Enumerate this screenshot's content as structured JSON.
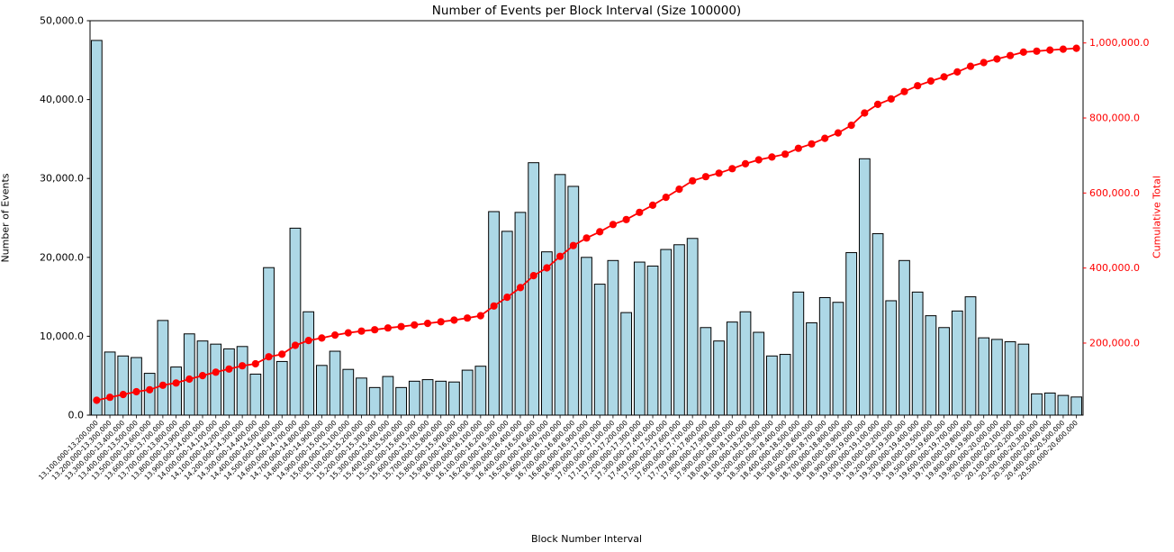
{
  "chart_data": {
    "type": "combo_bar_line_dual_axis",
    "title": "Number of Events per Block Interval (Size 100000)",
    "xlabel": "Block Number Interval",
    "ylabel_left": "Number of Events",
    "ylabel_right": "Cumulative Total",
    "grid": false,
    "legend": "none",
    "x_tick_rotation_deg": 45,
    "categories": [
      "13,100,000-13,200,000",
      "13,200,000-13,300,000",
      "13,300,000-13,400,000",
      "13,400,000-13,500,000",
      "13,500,000-13,600,000",
      "13,600,000-13,700,000",
      "13,700,000-13,800,000",
      "13,800,000-13,900,000",
      "13,900,000-14,000,000",
      "14,000,000-14,100,000",
      "14,100,000-14,200,000",
      "14,200,000-14,300,000",
      "14,300,000-14,400,000",
      "14,400,000-14,500,000",
      "14,500,000-14,600,000",
      "14,600,000-14,700,000",
      "14,700,000-14,800,000",
      "14,800,000-14,900,000",
      "14,900,000-15,000,000",
      "15,000,000-15,100,000",
      "15,100,000-15,200,000",
      "15,200,000-15,300,000",
      "15,300,000-15,400,000",
      "15,400,000-15,500,000",
      "15,500,000-15,600,000",
      "15,600,000-15,700,000",
      "15,700,000-15,800,000",
      "15,800,000-15,900,000",
      "15,900,000-16,000,000",
      "16,000,000-16,100,000",
      "16,100,000-16,200,000",
      "16,200,000-16,300,000",
      "16,300,000-16,400,000",
      "16,400,000-16,500,000",
      "16,500,000-16,600,000",
      "16,600,000-16,700,000",
      "16,700,000-16,800,000",
      "16,800,000-16,900,000",
      "16,900,000-17,000,000",
      "17,000,000-17,100,000",
      "17,100,000-17,200,000",
      "17,200,000-17,300,000",
      "17,300,000-17,400,000",
      "17,400,000-17,500,000",
      "17,500,000-17,600,000",
      "17,600,000-17,700,000",
      "17,700,000-17,800,000",
      "17,800,000-17,900,000",
      "17,900,000-18,000,000",
      "18,000,000-18,100,000",
      "18,100,000-18,200,000",
      "18,200,000-18,300,000",
      "18,300,000-18,400,000",
      "18,400,000-18,500,000",
      "18,500,000-18,600,000",
      "18,600,000-18,700,000",
      "18,700,000-18,800,000",
      "18,800,000-18,900,000",
      "18,900,000-19,000,000",
      "19,000,000-19,100,000",
      "19,100,000-19,200,000",
      "19,200,000-19,300,000",
      "19,300,000-19,400,000",
      "19,400,000-19,500,000",
      "19,500,000-19,600,000",
      "19,600,000-19,700,000",
      "19,700,000-19,800,000",
      "19,800,000-19,900,000",
      "19,900,000-20,000,000",
      "20,000,000-20,100,000",
      "20,100,000-20,200,000",
      "20,200,000-20,300,000",
      "20,300,000-20,400,000",
      "20,400,000-20,500,000",
      "20,500,000-20,600,000"
    ],
    "series": [
      {
        "name": "Number of Events",
        "type": "bar",
        "axis": "left",
        "fill": "#ADD8E6",
        "edge": "#000000",
        "values": [
          47500,
          8000,
          7500,
          7300,
          5300,
          12000,
          6100,
          10300,
          9400,
          9000,
          8400,
          8700,
          5200,
          18700,
          6800,
          23700,
          13100,
          6300,
          8100,
          5800,
          4700,
          3500,
          4900,
          3500,
          4300,
          4500,
          4300,
          4200,
          5700,
          6200,
          25800,
          23300,
          25700,
          32000,
          20700,
          30500,
          29000,
          20000,
          16600,
          19600,
          13000,
          19400,
          18900,
          21000,
          21600,
          22400,
          11100,
          9400,
          11800,
          13100,
          10500,
          7500,
          7700,
          15600,
          11700,
          14900,
          14300,
          20600,
          32500,
          23000,
          14500,
          19600,
          15600,
          12600,
          11100,
          13200,
          15000,
          9800,
          9600,
          9300,
          9000,
          2700,
          2800,
          2500,
          2300
        ]
      },
      {
        "name": "Cumulative Total",
        "type": "line",
        "axis": "right",
        "color": "#FF0000",
        "marker": "circle",
        "values": [
          47500,
          55500,
          63000,
          70300,
          75600,
          87600,
          93700,
          104000,
          113400,
          122400,
          130800,
          139500,
          144700,
          163400,
          170200,
          193900,
          207000,
          213300,
          221400,
          227200,
          231900,
          235400,
          240300,
          243800,
          248100,
          252600,
          256900,
          261100,
          266800,
          273000,
          298800,
          322100,
          347800,
          379800,
          400500,
          431000,
          460000,
          480000,
          496600,
          516200,
          529200,
          548600,
          567500,
          588500,
          610100,
          632500,
          643600,
          653000,
          664800,
          677900,
          688400,
          695900,
          703600,
          719200,
          730900,
          745800,
          760100,
          780700,
          813200,
          836200,
          850700,
          870300,
          885900,
          898500,
          909600,
          922800,
          937800,
          947600,
          957200,
          966500,
          975500,
          978200,
          981000,
          983500,
          985800
        ]
      }
    ],
    "left_axis": {
      "min": 0,
      "max": 50000,
      "tick_values": [
        0,
        10000,
        20000,
        30000,
        40000,
        50000
      ],
      "tick_labels": [
        "0.0",
        "10,000.0",
        "20,000.0",
        "30,000.0",
        "40,000.0",
        "50,000.0"
      ],
      "color": "#000000"
    },
    "right_axis": {
      "tick_values": [
        200000,
        400000,
        600000,
        800000,
        1000000
      ],
      "tick_labels": [
        "200,000.0",
        "400,000.0",
        "600,000.0",
        "800,000.0",
        "1,000,000.0"
      ],
      "color": "#FF0000"
    }
  },
  "colors": {
    "background": "#FFFFFF",
    "bar_fill": "#ADD8E6",
    "bar_edge": "#000000",
    "line": "#FF0000",
    "text": "#000000"
  }
}
